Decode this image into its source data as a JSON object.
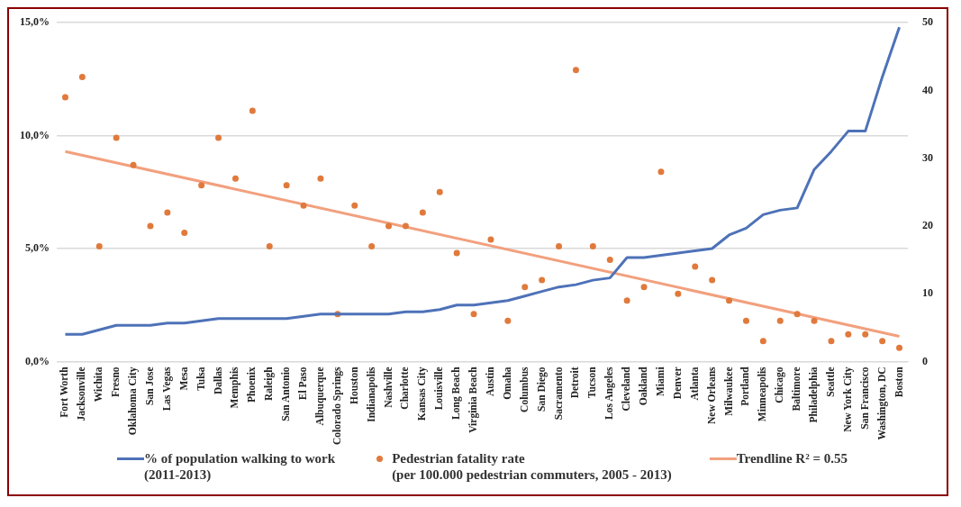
{
  "chart_data": {
    "type": "line",
    "categories": [
      "Fort Worth",
      "Jacksonville",
      "Wichita",
      "Fresno",
      "Oklahoma City",
      "San Jose",
      "Las Vegas",
      "Mesa",
      "Tulsa",
      "Dallas",
      "Memphis",
      "Phoenix",
      "Raleigh",
      "San Antonio",
      "El Paso",
      "Albuquerque",
      "Colorado Springs",
      "Houston",
      "Indianapolis",
      "Nashville",
      "Charlotte",
      "Kansas City",
      "Louisville",
      "Long Beach",
      "Virginia Beach",
      "Austin",
      "Omaha",
      "Columbus",
      "San Diego",
      "Sacramento",
      "Detroit",
      "Tucson",
      "Los Angeles",
      "Cleveland",
      "Oakland",
      "Miami",
      "Denver",
      "Atlanta",
      "New Orleans",
      "Milwaukee",
      "Portland",
      "Minneapolis",
      "Chicago",
      "Baltimore",
      "Philadelphia",
      "Seattle",
      "New York City",
      "San Francisco",
      "Washington, DC",
      "Boston"
    ],
    "series": [
      {
        "name": "% of population walking to work\n(2011-2013)",
        "color": "#4e72b8",
        "values": [
          1.2,
          1.2,
          1.4,
          1.6,
          1.6,
          1.6,
          1.7,
          1.7,
          1.8,
          1.9,
          1.9,
          1.9,
          1.9,
          1.9,
          2.0,
          2.1,
          2.1,
          2.1,
          2.1,
          2.1,
          2.2,
          2.2,
          2.3,
          2.5,
          2.5,
          2.6,
          2.7,
          2.9,
          3.1,
          3.3,
          3.4,
          3.6,
          3.7,
          4.6,
          4.6,
          4.7,
          4.8,
          4.9,
          5.0,
          5.6,
          5.9,
          6.5,
          6.7,
          6.8,
          8.5,
          9.3,
          10.2,
          10.2,
          12.6,
          14.8
        ]
      },
      {
        "name": "Pedestrian fatality rate\n(per 100.000 pedestrian commuters, 2005 - 2013)",
        "type": "scatter",
        "marker": "circle",
        "axis": "y2",
        "color": "#e07a3c",
        "values": [
          39,
          42,
          17,
          33,
          29,
          20,
          22,
          19,
          26,
          33,
          27,
          37,
          17,
          26,
          23,
          27,
          7,
          23,
          17,
          20,
          20,
          22,
          25,
          16,
          7,
          18,
          6,
          11,
          12,
          17,
          43,
          17,
          15,
          9,
          11,
          28,
          10,
          14,
          12,
          9,
          6,
          3,
          6,
          7,
          6,
          3,
          4,
          4,
          3,
          2
        ]
      },
      {
        "name": "Trendline R² = 0.55",
        "type": "line",
        "axis": "y2",
        "color": "#f2a07e",
        "values": [
          31,
          null,
          null,
          null,
          null,
          null,
          null,
          null,
          null,
          null,
          null,
          null,
          null,
          null,
          null,
          null,
          null,
          null,
          null,
          null,
          null,
          null,
          null,
          null,
          null,
          null,
          null,
          null,
          null,
          null,
          null,
          null,
          null,
          null,
          null,
          null,
          null,
          null,
          null,
          null,
          null,
          null,
          null,
          null,
          null,
          null,
          null,
          null,
          null,
          3.7
        ]
      }
    ],
    "ylim": [
      0,
      15
    ],
    "yticks": [
      {
        "value": 0,
        "label": "0,0%"
      },
      {
        "value": 5,
        "label": "5,0%"
      },
      {
        "value": 10,
        "label": "10,0%"
      },
      {
        "value": 15,
        "label": "15,0%"
      }
    ],
    "y2lim": [
      0,
      50
    ],
    "y2ticks": [
      0,
      10,
      20,
      30,
      40,
      50
    ],
    "grid": "y",
    "legend": "bottom"
  }
}
